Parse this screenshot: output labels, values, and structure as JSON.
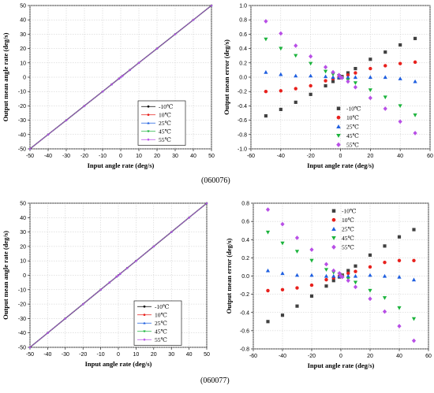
{
  "captions": [
    "(060076)",
    "(060077)"
  ],
  "series_names": [
    "-10℃",
    "10℃",
    "25℃",
    "45℃",
    "55℃"
  ],
  "chart_data": [
    {
      "type": "line",
      "title": "",
      "xlabel": "Input angle rate (deg/s)",
      "ylabel": "Output mean angle rate (deg/s)",
      "xlim": [
        -50,
        50
      ],
      "ylim": [
        -50,
        50
      ],
      "xticks": [
        -50,
        -40,
        -30,
        -20,
        -10,
        0,
        10,
        20,
        30,
        40,
        50
      ],
      "yticks": [
        -50,
        -40,
        -30,
        -20,
        -10,
        0,
        10,
        20,
        30,
        40,
        50
      ],
      "grid": true,
      "legend": "bottom-right",
      "x": [
        -50,
        -40,
        -30,
        -20,
        -10,
        -5,
        -1,
        0,
        1,
        5,
        10,
        20,
        30,
        40,
        50
      ],
      "series": [
        {
          "name": "-10℃",
          "color": "#000000",
          "marker": "circle"
        },
        {
          "name": "10℃",
          "color": "#e8211d",
          "marker": "circle"
        },
        {
          "name": "25℃",
          "color": "#1f5fe0",
          "marker": "triangle-up"
        },
        {
          "name": "45℃",
          "color": "#1bb33c",
          "marker": "triangle-down"
        },
        {
          "name": "55℃",
          "color": "#b84fe6",
          "marker": "diamond"
        }
      ]
    },
    {
      "type": "scatter",
      "title": "",
      "xlabel": "Input angle rate (deg/s)",
      "ylabel": "Output  mean error (deg/s)",
      "xlim": [
        -60,
        60
      ],
      "ylim": [
        -1.0,
        1.0
      ],
      "xticks": [
        -60,
        -40,
        -20,
        0,
        20,
        40,
        60
      ],
      "yticks": [
        -1.0,
        -0.8,
        -0.6,
        -0.4,
        -0.2,
        0.0,
        0.2,
        0.4,
        0.6,
        0.8,
        1.0
      ],
      "grid": true,
      "legend": "bottom-right",
      "x": [
        -50,
        -40,
        -30,
        -20,
        -10,
        -5,
        -1,
        0,
        1,
        5,
        10,
        20,
        30,
        40,
        50
      ],
      "series": [
        {
          "name": "-10℃",
          "color": "#404040",
          "marker": "square",
          "values": [
            -0.54,
            -0.45,
            -0.35,
            -0.24,
            -0.12,
            -0.06,
            -0.01,
            0.0,
            0.01,
            0.06,
            0.12,
            0.25,
            0.35,
            0.45,
            0.54
          ]
        },
        {
          "name": "10℃",
          "color": "#e8211d",
          "marker": "circle",
          "values": [
            -0.2,
            -0.19,
            -0.16,
            -0.12,
            -0.05,
            -0.02,
            0.0,
            0.0,
            0.0,
            0.03,
            0.06,
            0.12,
            0.16,
            0.19,
            0.21
          ]
        },
        {
          "name": "25℃",
          "color": "#1f5fe0",
          "marker": "triangle-up",
          "values": [
            0.07,
            0.04,
            0.02,
            0.02,
            0.01,
            0.0,
            0.0,
            0.0,
            0.0,
            0.0,
            0.0,
            0.0,
            0.0,
            -0.02,
            -0.06
          ]
        },
        {
          "name": "45℃",
          "color": "#1bb33c",
          "marker": "triangle-down",
          "values": [
            0.53,
            0.4,
            0.3,
            0.19,
            0.08,
            0.04,
            0.02,
            0.0,
            -0.01,
            -0.04,
            -0.08,
            -0.18,
            -0.28,
            -0.4,
            -0.53
          ]
        },
        {
          "name": "55℃",
          "color": "#b84fe6",
          "marker": "diamond",
          "values": [
            0.78,
            0.61,
            0.44,
            0.29,
            0.14,
            0.07,
            0.03,
            0.0,
            -0.01,
            -0.06,
            -0.14,
            -0.29,
            -0.44,
            -0.62,
            -0.78
          ]
        }
      ]
    },
    {
      "type": "line",
      "title": "",
      "xlabel": "Input angle rate (deg/s)",
      "ylabel": "Output mean angle rate (deg/s)",
      "xlim": [
        -50,
        50
      ],
      "ylim": [
        -50,
        50
      ],
      "xticks": [
        -50,
        -40,
        -30,
        -20,
        -10,
        0,
        10,
        20,
        30,
        40,
        50
      ],
      "yticks": [
        -50,
        -40,
        -30,
        -20,
        -10,
        0,
        10,
        20,
        30,
        40,
        50
      ],
      "grid": true,
      "legend": "bottom-right",
      "x": [
        -50,
        -40,
        -30,
        -20,
        -10,
        -5,
        -1,
        0,
        1,
        5,
        10,
        20,
        30,
        40,
        50
      ],
      "series": [
        {
          "name": "-10℃",
          "color": "#000000",
          "marker": "circle"
        },
        {
          "name": "10℃",
          "color": "#e8211d",
          "marker": "circle"
        },
        {
          "name": "25℃",
          "color": "#1f5fe0",
          "marker": "triangle-up"
        },
        {
          "name": "45℃",
          "color": "#1bb33c",
          "marker": "triangle-down"
        },
        {
          "name": "55℃",
          "color": "#b84fe6",
          "marker": "diamond"
        }
      ]
    },
    {
      "type": "scatter",
      "title": "",
      "xlabel": "Input angle rate (deg/s)",
      "ylabel": "Output mean error (deg/s)",
      "xlim": [
        -60,
        60
      ],
      "ylim": [
        -0.8,
        0.8
      ],
      "xticks": [
        -60,
        -40,
        -20,
        0,
        20,
        40,
        60
      ],
      "yticks": [
        -0.8,
        -0.6,
        -0.4,
        -0.2,
        0.0,
        0.2,
        0.4,
        0.6,
        0.8
      ],
      "grid": true,
      "legend": "top-right",
      "x": [
        -50,
        -40,
        -30,
        -20,
        -10,
        -5,
        -1,
        0,
        1,
        5,
        10,
        20,
        30,
        40,
        50
      ],
      "series": [
        {
          "name": "-10℃",
          "color": "#404040",
          "marker": "square",
          "values": [
            -0.5,
            -0.43,
            -0.33,
            -0.22,
            -0.11,
            -0.05,
            -0.01,
            0.0,
            0.01,
            0.06,
            0.11,
            0.23,
            0.33,
            0.43,
            0.51
          ]
        },
        {
          "name": "10℃",
          "color": "#e8211d",
          "marker": "circle",
          "values": [
            -0.16,
            -0.15,
            -0.13,
            -0.1,
            -0.04,
            -0.02,
            0.0,
            0.0,
            0.0,
            0.03,
            0.05,
            0.1,
            0.15,
            0.17,
            0.17
          ]
        },
        {
          "name": "25℃",
          "color": "#1f5fe0",
          "marker": "triangle-up",
          "values": [
            0.06,
            0.03,
            0.01,
            0.01,
            0.0,
            0.0,
            0.0,
            0.0,
            0.0,
            0.0,
            0.0,
            0.01,
            0.0,
            -0.01,
            -0.04
          ]
        },
        {
          "name": "45℃",
          "color": "#1bb33c",
          "marker": "triangle-down",
          "values": [
            0.48,
            0.36,
            0.27,
            0.17,
            0.07,
            0.04,
            0.02,
            0.0,
            -0.01,
            -0.03,
            -0.07,
            -0.16,
            -0.24,
            -0.35,
            -0.47
          ]
        },
        {
          "name": "55℃",
          "color": "#b84fe6",
          "marker": "diamond",
          "values": [
            0.73,
            0.57,
            0.42,
            0.29,
            0.13,
            0.06,
            0.03,
            0.0,
            -0.01,
            -0.05,
            -0.12,
            -0.25,
            -0.39,
            -0.55,
            -0.71
          ]
        }
      ]
    }
  ]
}
